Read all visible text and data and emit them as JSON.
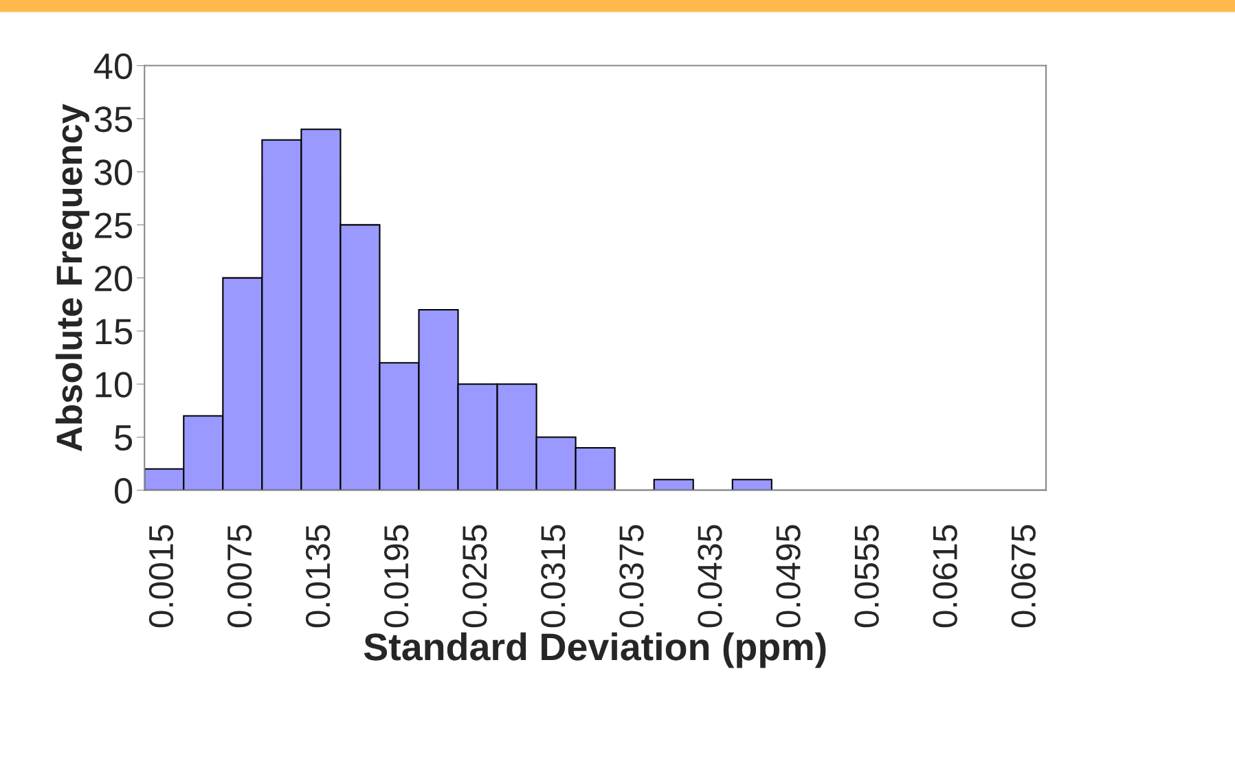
{
  "chart_data": {
    "type": "bar",
    "xlabel": "Standard Deviation (ppm)",
    "ylabel": "Absolute Frequency",
    "categories": [
      "0.0015",
      null,
      "0.0075",
      null,
      "0.0135",
      null,
      "0.0195",
      null,
      "0.0255",
      null,
      "0.0315",
      null,
      "0.0375",
      null,
      "0.0435",
      null,
      "0.0495",
      null,
      "0.0555",
      null,
      "0.0615",
      null,
      "0.0675"
    ],
    "values": [
      2,
      7,
      20,
      33,
      34,
      25,
      12,
      17,
      10,
      10,
      5,
      4,
      0,
      1,
      0,
      1,
      0,
      0,
      0,
      0,
      0,
      0,
      0
    ],
    "color": "#9999ff",
    "ylim": [
      0,
      40
    ],
    "yticks": [
      0,
      5,
      10,
      15,
      20,
      25,
      30,
      35,
      40
    ],
    "grid": false,
    "legend": false
  }
}
